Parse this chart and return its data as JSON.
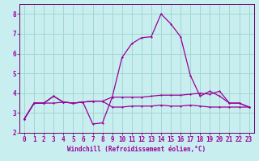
{
  "xlabel": "Windchill (Refroidissement éolien,°C)",
  "background_color": "#c8eef0",
  "grid_color": "#a0d8d0",
  "line_color": "#990099",
  "spine_color": "#660066",
  "x_hours": [
    0,
    1,
    2,
    3,
    4,
    5,
    6,
    7,
    8,
    9,
    10,
    11,
    12,
    13,
    14,
    15,
    16,
    17,
    18,
    19,
    20,
    21,
    22,
    23
  ],
  "line1": [
    2.7,
    3.5,
    3.5,
    3.5,
    3.55,
    3.5,
    3.55,
    3.6,
    3.6,
    3.3,
    3.3,
    3.35,
    3.35,
    3.35,
    3.4,
    3.35,
    3.35,
    3.4,
    3.35,
    3.3,
    3.3,
    3.3,
    3.3,
    3.3
  ],
  "line2": [
    2.7,
    3.5,
    3.5,
    3.85,
    3.55,
    3.5,
    3.55,
    2.45,
    2.5,
    3.8,
    5.8,
    6.5,
    6.8,
    6.85,
    8.0,
    7.5,
    6.85,
    4.9,
    3.85,
    4.1,
    3.85,
    3.5,
    3.5,
    3.3
  ],
  "line3": [
    2.7,
    3.5,
    3.5,
    3.85,
    3.55,
    3.5,
    3.55,
    3.6,
    3.6,
    3.8,
    3.8,
    3.8,
    3.8,
    3.85,
    3.9,
    3.9,
    3.9,
    3.95,
    4.0,
    3.95,
    4.1,
    3.5,
    3.5,
    3.3
  ],
  "ylim": [
    2.0,
    8.5
  ],
  "yticks": [
    2,
    3,
    4,
    5,
    6,
    7,
    8
  ],
  "xlim": [
    -0.5,
    23.5
  ],
  "xticks": [
    0,
    1,
    2,
    3,
    4,
    5,
    6,
    7,
    8,
    9,
    10,
    11,
    12,
    13,
    14,
    15,
    16,
    17,
    18,
    19,
    20,
    21,
    22,
    23
  ],
  "tick_fontsize": 5.5,
  "xlabel_fontsize": 5.5
}
